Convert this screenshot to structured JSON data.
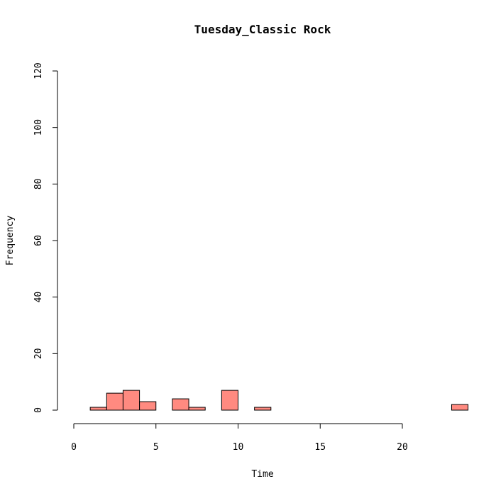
{
  "chart_data": {
    "type": "bar",
    "title": "Tuesday_Classic Rock",
    "xlabel": "Time",
    "ylabel": "Frequency",
    "xlim": [
      0,
      24
    ],
    "ylim": [
      0,
      120
    ],
    "x_ticks": [
      "0",
      "5",
      "10",
      "15",
      "20"
    ],
    "y_ticks": [
      "0",
      "20",
      "40",
      "60",
      "80",
      "100",
      "120"
    ],
    "bar_color": "#ff8a80",
    "bins": [
      {
        "start": 1,
        "end": 2,
        "count": 1
      },
      {
        "start": 2,
        "end": 3,
        "count": 6
      },
      {
        "start": 3,
        "end": 4,
        "count": 7
      },
      {
        "start": 4,
        "end": 5,
        "count": 3
      },
      {
        "start": 5,
        "end": 6,
        "count": 0
      },
      {
        "start": 6,
        "end": 7,
        "count": 4
      },
      {
        "start": 7,
        "end": 8,
        "count": 1
      },
      {
        "start": 8,
        "end": 9,
        "count": 0
      },
      {
        "start": 9,
        "end": 10,
        "count": 7
      },
      {
        "start": 10,
        "end": 11,
        "count": 0
      },
      {
        "start": 11,
        "end": 12,
        "count": 1
      },
      {
        "start": 12,
        "end": 13,
        "count": 0
      },
      {
        "start": 13,
        "end": 14,
        "count": 0
      },
      {
        "start": 14,
        "end": 15,
        "count": 0
      },
      {
        "start": 15,
        "end": 16,
        "count": 0
      },
      {
        "start": 16,
        "end": 17,
        "count": 0
      },
      {
        "start": 17,
        "end": 18,
        "count": 0
      },
      {
        "start": 18,
        "end": 19,
        "count": 0
      },
      {
        "start": 19,
        "end": 20,
        "count": 0
      },
      {
        "start": 20,
        "end": 21,
        "count": 0
      },
      {
        "start": 21,
        "end": 22,
        "count": 0
      },
      {
        "start": 22,
        "end": 23,
        "count": 0
      },
      {
        "start": 23,
        "end": 24,
        "count": 2
      }
    ]
  }
}
